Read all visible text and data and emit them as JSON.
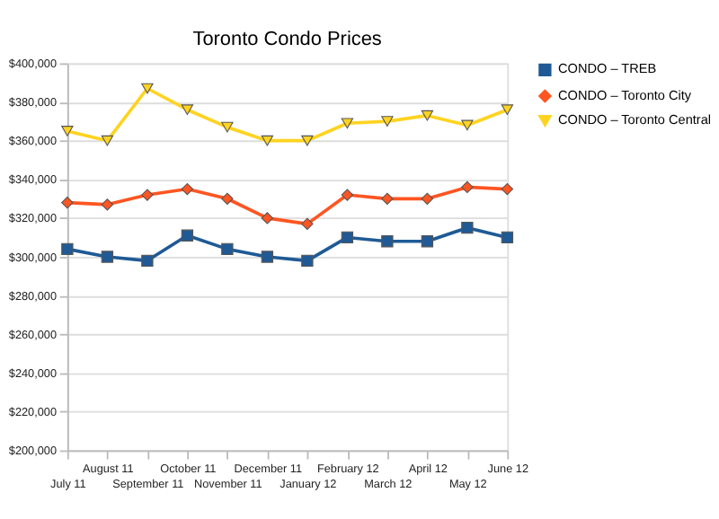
{
  "chart_data": {
    "type": "line",
    "title": "Toronto Condo Prices",
    "categories": [
      "July 11",
      "August 11",
      "September 11",
      "October 11",
      "November 11",
      "December 11",
      "January 12",
      "February 12",
      "March 12",
      "April 12",
      "May 12",
      "June 12"
    ],
    "series": [
      {
        "name": "CONDO – TREB",
        "color": "#1f5a96",
        "marker": "square",
        "values": [
          304000,
          300000,
          298000,
          311000,
          304000,
          300000,
          298000,
          310000,
          308000,
          308000,
          315000,
          310000
        ]
      },
      {
        "name": "CONDO – Toronto City",
        "color": "#ff5522",
        "marker": "diamond",
        "values": [
          328000,
          327000,
          332000,
          335000,
          330000,
          320000,
          317000,
          332000,
          330000,
          330000,
          336000,
          335000
        ]
      },
      {
        "name": "CONDO – Toronto Central",
        "color": "#ffd320",
        "marker": "triangle",
        "values": [
          365000,
          360000,
          387000,
          376000,
          367000,
          360000,
          360000,
          369000,
          370000,
          373000,
          368000,
          376000
        ]
      }
    ],
    "ylim": [
      200000,
      400000
    ],
    "yticks": [
      {
        "value": 200000,
        "label": "$200,000"
      },
      {
        "value": 220000,
        "label": "$220,000"
      },
      {
        "value": 240000,
        "label": "$240,000"
      },
      {
        "value": 260000,
        "label": "$260,000"
      },
      {
        "value": 280000,
        "label": "$280,000"
      },
      {
        "value": 300000,
        "label": "$300,000"
      },
      {
        "value": 320000,
        "label": "$320,000"
      },
      {
        "value": 340000,
        "label": "$340,000"
      },
      {
        "value": 360000,
        "label": "$360,000"
      },
      {
        "value": 380000,
        "label": "$380,000"
      },
      {
        "value": 400000,
        "label": "$400,000"
      }
    ],
    "grid": "y",
    "legend": "right",
    "line_style": "solid"
  }
}
